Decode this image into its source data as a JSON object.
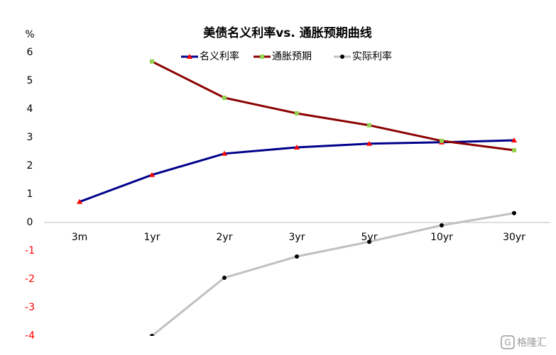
{
  "chart_data": {
    "type": "line",
    "title": "美债名义利率vs. 通胀预期曲线",
    "y_unit": "%",
    "categories": [
      "3m",
      "1yr",
      "2yr",
      "3yr",
      "5yr",
      "10yr",
      "30yr"
    ],
    "series": [
      {
        "name": "名义利率",
        "color": "#00008b",
        "marker": "triangle",
        "marker_color": "#ff0000",
        "values": [
          0.73,
          1.68,
          2.43,
          2.65,
          2.78,
          2.83,
          2.9
        ]
      },
      {
        "name": "通胀预期",
        "color": "#8b0000",
        "marker": "square",
        "marker_color": "#92d050",
        "values": [
          null,
          5.68,
          4.4,
          3.85,
          3.43,
          2.88,
          2.55
        ]
      },
      {
        "name": "实际利率",
        "color": "#c0c0c0",
        "marker": "circle",
        "marker_color": "#000000",
        "values": [
          null,
          -4.0,
          -1.95,
          -1.2,
          -0.68,
          -0.1,
          0.33
        ]
      }
    ],
    "ylim": [
      -4,
      6
    ],
    "yticks": [
      -4,
      -3,
      -2,
      -1,
      0,
      1,
      2,
      3,
      4,
      5,
      6
    ],
    "negative_tick_color": "#ff0000",
    "grid": false,
    "watermark": "格隆汇"
  }
}
